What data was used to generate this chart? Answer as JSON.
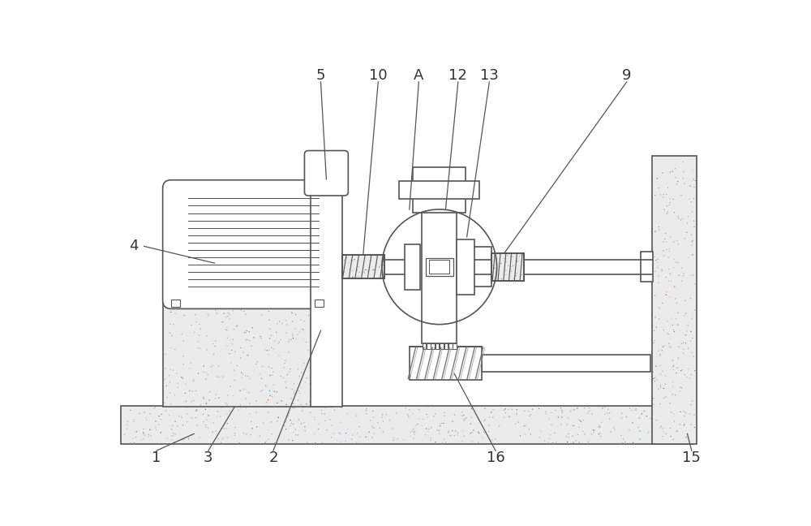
{
  "line_color": "#555555",
  "lw": 1.2,
  "fig_w": 10.0,
  "fig_h": 6.48,
  "xlim": [
    0,
    10
  ],
  "ylim": [
    0,
    6.48
  ]
}
